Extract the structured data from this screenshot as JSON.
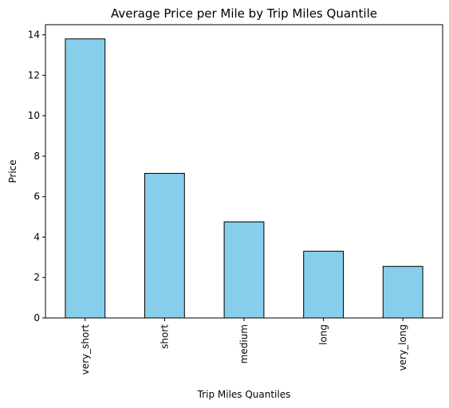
{
  "chart_data": {
    "type": "bar",
    "title": "Average Price per Mile by Trip Miles Quantile",
    "xlabel": "Trip Miles Quantiles",
    "ylabel": "Price",
    "categories": [
      "very_short",
      "short",
      "medium",
      "long",
      "very_long"
    ],
    "values": [
      13.8,
      7.15,
      4.75,
      3.3,
      2.55
    ],
    "ylim": [
      0,
      14.5
    ],
    "yticks": [
      0,
      2,
      4,
      6,
      8,
      10,
      12,
      14
    ],
    "grid": false,
    "legend": "none",
    "bar_color": "#87CEEB",
    "bar_edge_color": "#000000"
  }
}
